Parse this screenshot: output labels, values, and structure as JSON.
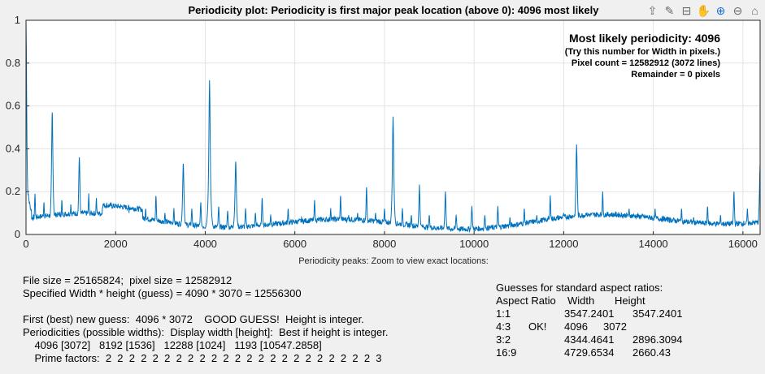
{
  "toolbar": {
    "icons": [
      "export-icon",
      "brush-icon",
      "data-tips-icon",
      "pan-icon",
      "zoom-in-icon",
      "zoom-out-icon",
      "home-icon"
    ]
  },
  "chart_data": {
    "type": "line",
    "title": "Periodicity plot: Periodicity is first major peak location (above 0):  4096 most likely",
    "xlabel": "Periodicity peaks:  Zoom to view exact locations:",
    "ylabel": "",
    "xlim": [
      0,
      16384
    ],
    "ylim": [
      0,
      1
    ],
    "xticks": [
      0,
      2000,
      4000,
      6000,
      8000,
      10000,
      12000,
      14000,
      16000
    ],
    "xtick_labels": [
      "0",
      "2000",
      "4000",
      "6000",
      "8000",
      "10000",
      "12000",
      "14000",
      "16000"
    ],
    "yticks": [
      0,
      0.2,
      0.4,
      0.6,
      0.8,
      1
    ],
    "ytick_labels": [
      "0",
      "0.2",
      "0.4",
      "0.6",
      "0.8",
      "1"
    ],
    "grid": true,
    "line_color": "#0072bd",
    "peaks": [
      {
        "x": 0,
        "y": 1.0
      },
      {
        "x": 200,
        "y": 0.19
      },
      {
        "x": 400,
        "y": 0.15
      },
      {
        "x": 585,
        "y": 0.57
      },
      {
        "x": 800,
        "y": 0.16
      },
      {
        "x": 1000,
        "y": 0.14
      },
      {
        "x": 1190,
        "y": 0.36
      },
      {
        "x": 1400,
        "y": 0.19
      },
      {
        "x": 1570,
        "y": 0.17
      },
      {
        "x": 1770,
        "y": 0.13
      },
      {
        "x": 2300,
        "y": 0.1
      },
      {
        "x": 2670,
        "y": 0.12
      },
      {
        "x": 2900,
        "y": 0.18
      },
      {
        "x": 3100,
        "y": 0.1
      },
      {
        "x": 3300,
        "y": 0.12
      },
      {
        "x": 3510,
        "y": 0.33
      },
      {
        "x": 3700,
        "y": 0.12
      },
      {
        "x": 3900,
        "y": 0.15
      },
      {
        "x": 4096,
        "y": 0.72
      },
      {
        "x": 4300,
        "y": 0.13
      },
      {
        "x": 4500,
        "y": 0.11
      },
      {
        "x": 4680,
        "y": 0.34
      },
      {
        "x": 4900,
        "y": 0.12
      },
      {
        "x": 5120,
        "y": 0.1
      },
      {
        "x": 5270,
        "y": 0.17
      },
      {
        "x": 5460,
        "y": 0.09
      },
      {
        "x": 5850,
        "y": 0.12
      },
      {
        "x": 6150,
        "y": 0.08
      },
      {
        "x": 6440,
        "y": 0.16
      },
      {
        "x": 6600,
        "y": 0.08
      },
      {
        "x": 6800,
        "y": 0.12
      },
      {
        "x": 7020,
        "y": 0.18
      },
      {
        "x": 7200,
        "y": 0.09
      },
      {
        "x": 7400,
        "y": 0.1
      },
      {
        "x": 7600,
        "y": 0.22
      },
      {
        "x": 7800,
        "y": 0.1
      },
      {
        "x": 8000,
        "y": 0.12
      },
      {
        "x": 8192,
        "y": 0.55
      },
      {
        "x": 8400,
        "y": 0.12
      },
      {
        "x": 8600,
        "y": 0.09
      },
      {
        "x": 8780,
        "y": 0.23
      },
      {
        "x": 9000,
        "y": 0.09
      },
      {
        "x": 9360,
        "y": 0.2
      },
      {
        "x": 9600,
        "y": 0.09
      },
      {
        "x": 9950,
        "y": 0.13
      },
      {
        "x": 10240,
        "y": 0.09
      },
      {
        "x": 10530,
        "y": 0.13
      },
      {
        "x": 10800,
        "y": 0.08
      },
      {
        "x": 11120,
        "y": 0.12
      },
      {
        "x": 11400,
        "y": 0.09
      },
      {
        "x": 11700,
        "y": 0.18
      },
      {
        "x": 12000,
        "y": 0.1
      },
      {
        "x": 12288,
        "y": 0.42
      },
      {
        "x": 12500,
        "y": 0.1
      },
      {
        "x": 12870,
        "y": 0.2
      },
      {
        "x": 13100,
        "y": 0.09
      },
      {
        "x": 13460,
        "y": 0.12
      },
      {
        "x": 13800,
        "y": 0.08
      },
      {
        "x": 14040,
        "y": 0.12
      },
      {
        "x": 14340,
        "y": 0.08
      },
      {
        "x": 14630,
        "y": 0.12
      },
      {
        "x": 14900,
        "y": 0.08
      },
      {
        "x": 15210,
        "y": 0.13
      },
      {
        "x": 15500,
        "y": 0.09
      },
      {
        "x": 15800,
        "y": 0.2
      },
      {
        "x": 16100,
        "y": 0.12
      },
      {
        "x": 16384,
        "y": 0.33
      }
    ],
    "annotations": [
      "Most likely periodicity:  4096",
      "(Try this number for Width in pixels.)",
      "Pixel count = 12582912  (3072 lines)",
      "Remainder = 0 pixels"
    ]
  },
  "info": {
    "line1": "File size = 25165824;  pixel size = 12582912",
    "line2": "Specified Width * height (guess) = 4090 * 3070 = 12556300",
    "line3": "First (best) new guess:  4096 * 3072    GOOD GUESS!  Height is integer.",
    "line4": "Periodicities (possible widths):  Display width [height]:  Best if height is integer.",
    "line5": "    4096 [3072]   8192 [1536]   12288 [1024]   1193 [10547.2858]",
    "line6": "    Prime factors:  2  2  2  2  2  2  2  2  2  2  2  2  2  2  2  2  2  2  2  2  2  2  2  3"
  },
  "aspect": {
    "title": "Guesses for standard aspect ratios:",
    "headers": [
      "Aspect Ratio",
      "Width",
      "Height"
    ],
    "rows": [
      {
        "ratio": "1:1",
        "note": "",
        "width": "3547.2401",
        "height": "3547.2401"
      },
      {
        "ratio": "4:3",
        "note": "OK!",
        "width": "4096",
        "height": "3072"
      },
      {
        "ratio": "3:2",
        "note": "",
        "width": "4344.4641",
        "height": "2896.3094"
      },
      {
        "ratio": "16:9",
        "note": "",
        "width": "4729.6534",
        "height": "2660.43"
      }
    ]
  }
}
